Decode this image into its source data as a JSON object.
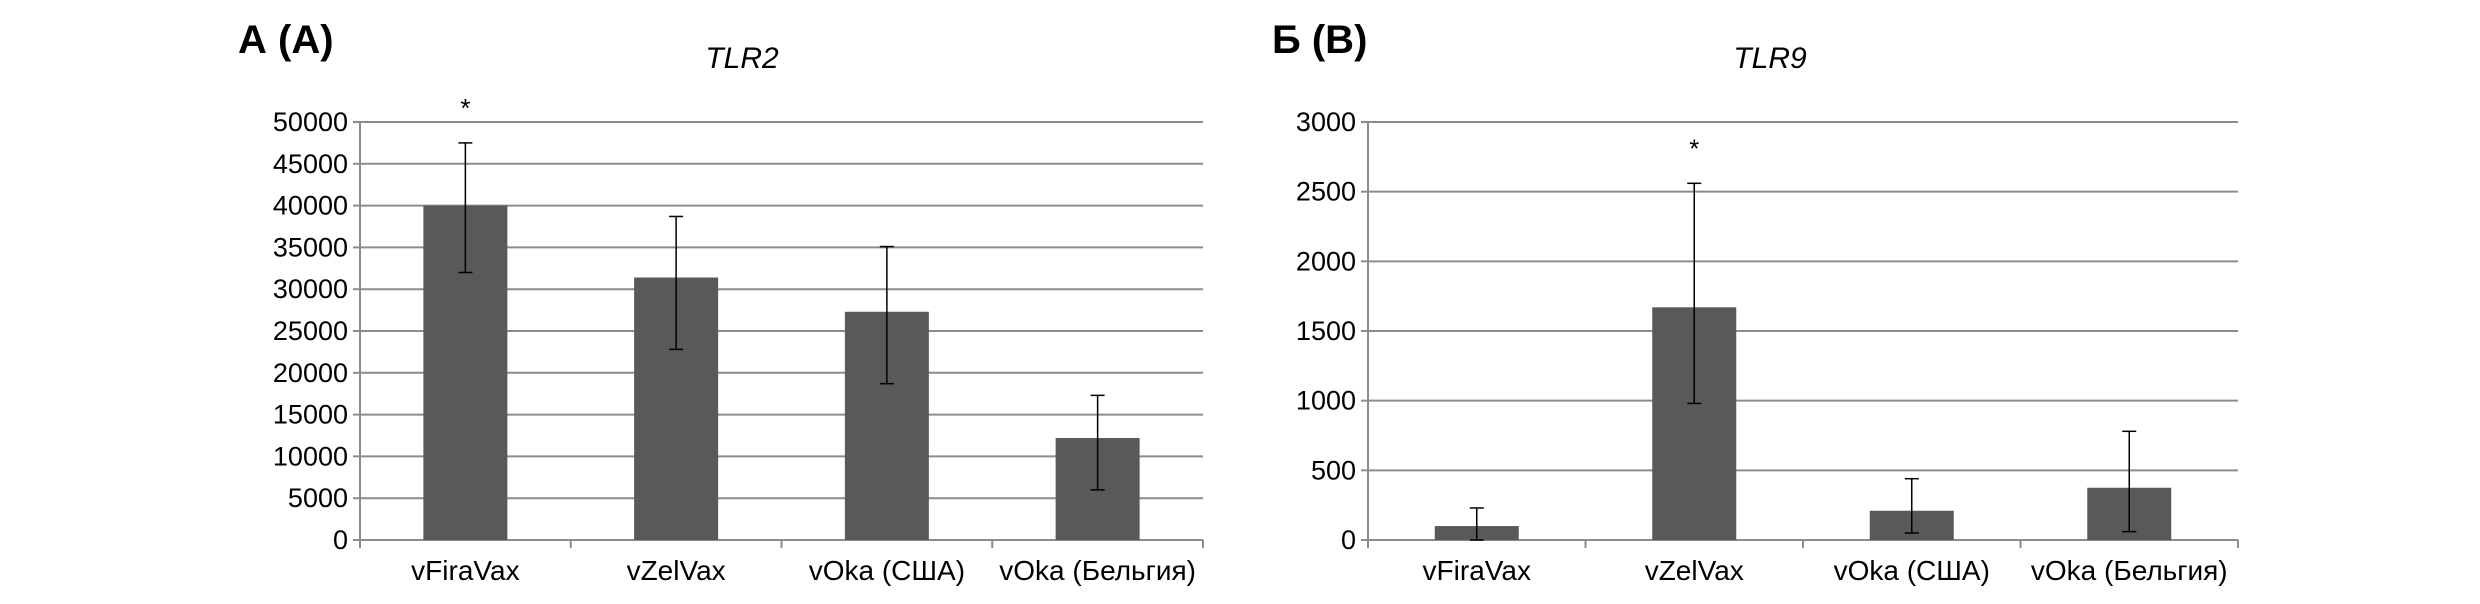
{
  "chart_data": [
    {
      "type": "bar",
      "panel_label": "А (A)",
      "title": "TLR2",
      "categories": [
        "vFiraVax",
        "vZelVax",
        "vOka (США)",
        "vOka (Бельгия)"
      ],
      "values": [
        40000,
        31400,
        27300,
        12200
      ],
      "error_low": [
        32000,
        22800,
        18700,
        6000
      ],
      "error_high": [
        47500,
        38700,
        35100,
        17300
      ],
      "significance": [
        "*",
        "",
        "",
        ""
      ],
      "ylim": [
        0,
        50000
      ],
      "yticks": [
        0,
        5000,
        10000,
        15000,
        20000,
        25000,
        30000,
        35000,
        40000,
        45000,
        50000
      ],
      "grid": true,
      "bar_color": "#595959"
    },
    {
      "type": "bar",
      "panel_label": "Б (B)",
      "title": "TLR9",
      "categories": [
        "vFiraVax",
        "vZelVax",
        "vOka (США)",
        "vOka (Бельгия)"
      ],
      "values": [
        100,
        1670,
        210,
        375
      ],
      "error_low": [
        0,
        980,
        50,
        60
      ],
      "error_high": [
        230,
        2560,
        440,
        780
      ],
      "significance": [
        "",
        "*",
        "",
        ""
      ],
      "ylim": [
        0,
        3000
      ],
      "yticks": [
        0,
        500,
        1000,
        1500,
        2000,
        2500,
        3000
      ],
      "grid": true,
      "bar_color": "#595959"
    }
  ]
}
